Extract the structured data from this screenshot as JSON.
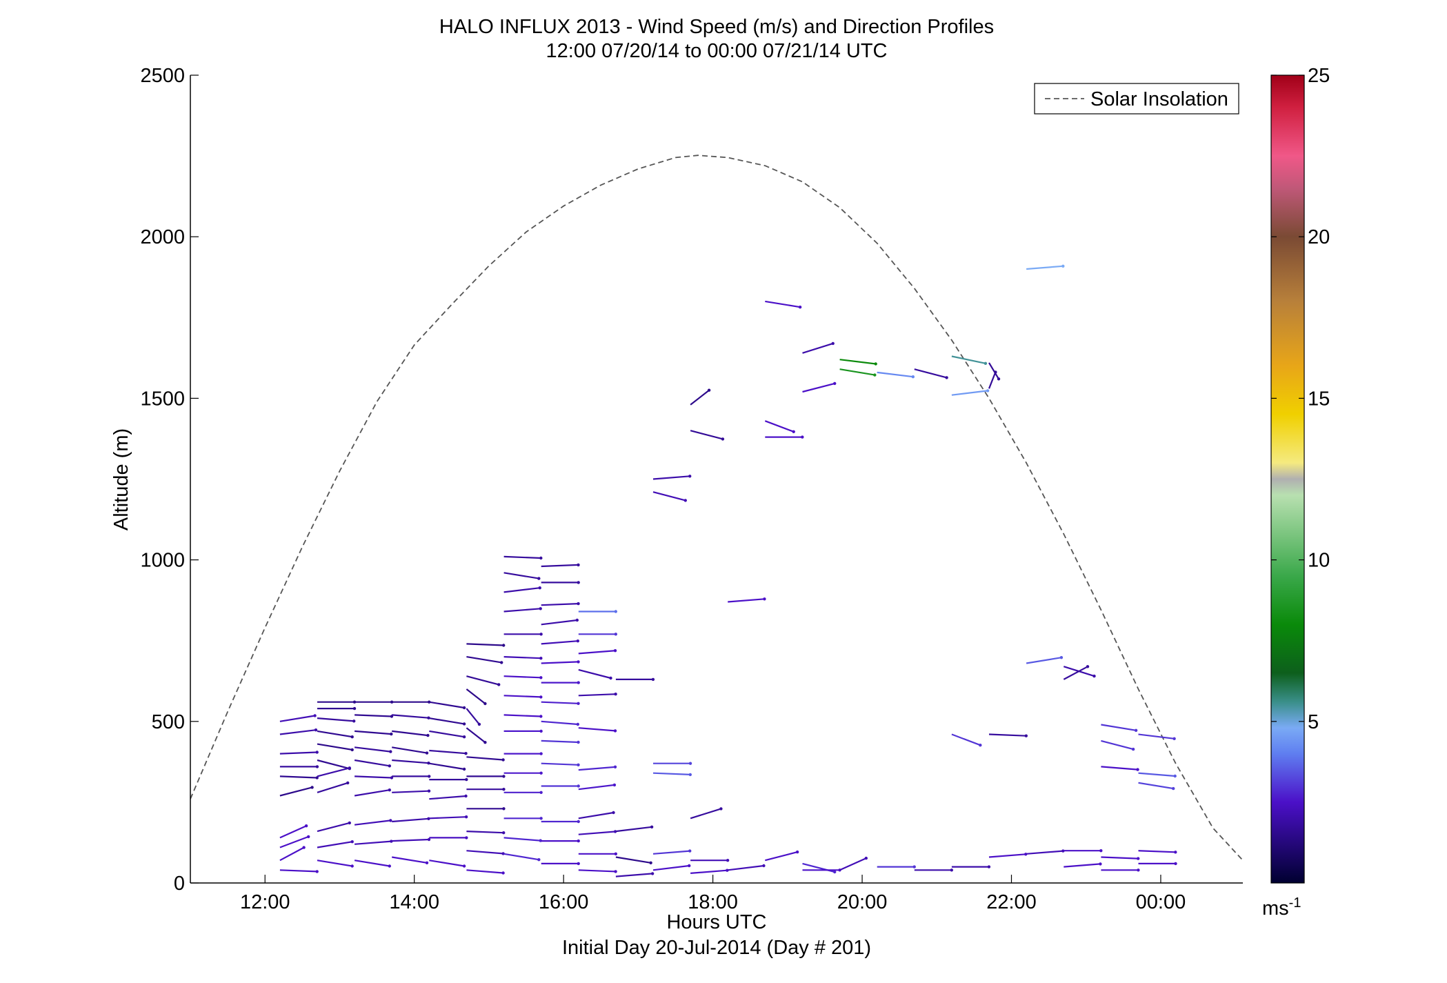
{
  "chart_data": {
    "type": "wind-barb-profile",
    "title": "HALO INFLUX 2013 - Wind Speed (m/s) and Direction Profiles",
    "subtitle": "12:00 07/20/14 to 00:00 07/21/14  UTC",
    "xlabel": "Hours UTC",
    "xlabel2": "Initial Day 20-Jul-2014 (Day # 201)",
    "ylabel": "Altitude (m)",
    "xlim_hours": [
      11.0,
      25.1
    ],
    "ylim": [
      0,
      2500
    ],
    "x_ticks": [
      {
        "value": 12,
        "label": "12:00"
      },
      {
        "value": 14,
        "label": "14:00"
      },
      {
        "value": 16,
        "label": "16:00"
      },
      {
        "value": 18,
        "label": "18:00"
      },
      {
        "value": 20,
        "label": "20:00"
      },
      {
        "value": 22,
        "label": "22:00"
      },
      {
        "value": 24,
        "label": "00:00"
      }
    ],
    "y_ticks": [
      {
        "value": 0,
        "label": "0"
      },
      {
        "value": 500,
        "label": "500"
      },
      {
        "value": 1000,
        "label": "1000"
      },
      {
        "value": 1500,
        "label": "1500"
      },
      {
        "value": 2000,
        "label": "2000"
      },
      {
        "value": 2500,
        "label": "2500"
      }
    ],
    "colorbar": {
      "range": [
        0,
        25
      ],
      "ticks": [
        {
          "value": 5,
          "label": "5"
        },
        {
          "value": 10,
          "label": "10"
        },
        {
          "value": 15,
          "label": "15"
        },
        {
          "value": 20,
          "label": "20"
        },
        {
          "value": 25,
          "label": "25"
        }
      ],
      "unit_label": "ms",
      "unit_exponent": "-1",
      "stops": [
        {
          "v": 0.0,
          "color": "#000030"
        },
        {
          "v": 2.5,
          "color": "#4b10c8"
        },
        {
          "v": 4.0,
          "color": "#5f7ef0"
        },
        {
          "v": 4.8,
          "color": "#7aaaf5"
        },
        {
          "v": 5.6,
          "color": "#3a8f8a"
        },
        {
          "v": 6.5,
          "color": "#0d5f1c"
        },
        {
          "v": 8.0,
          "color": "#0a8a0a"
        },
        {
          "v": 9.5,
          "color": "#3aa84a"
        },
        {
          "v": 12.0,
          "color": "#b8e0b0"
        },
        {
          "v": 12.5,
          "color": "#b0b0b0"
        },
        {
          "v": 13.0,
          "color": "#f5ea80"
        },
        {
          "v": 14.5,
          "color": "#f0d000"
        },
        {
          "v": 16.0,
          "color": "#e8a618"
        },
        {
          "v": 18.0,
          "color": "#b8803a"
        },
        {
          "v": 20.0,
          "color": "#7a4a34"
        },
        {
          "v": 21.5,
          "color": "#c05878"
        },
        {
          "v": 22.5,
          "color": "#f05888"
        },
        {
          "v": 24.0,
          "color": "#d02040"
        },
        {
          "v": 25.0,
          "color": "#a00018"
        }
      ]
    },
    "legend": {
      "entries": [
        "Solar Insolation"
      ],
      "placement": "top-right"
    },
    "solar_insolation": {
      "style": "dashed",
      "color": "#555555",
      "points": [
        [
          11.0,
          260
        ],
        [
          11.5,
          530
        ],
        [
          12.0,
          790
        ],
        [
          12.5,
          1040
        ],
        [
          13.0,
          1275
        ],
        [
          13.5,
          1490
        ],
        [
          14.0,
          1665
        ],
        [
          14.5,
          1790
        ],
        [
          15.0,
          1910
        ],
        [
          15.5,
          2015
        ],
        [
          16.0,
          2095
        ],
        [
          16.5,
          2160
        ],
        [
          17.0,
          2210
        ],
        [
          17.5,
          2245
        ],
        [
          17.8,
          2252
        ],
        [
          18.2,
          2245
        ],
        [
          18.7,
          2220
        ],
        [
          19.2,
          2170
        ],
        [
          19.7,
          2090
        ],
        [
          20.2,
          1980
        ],
        [
          20.7,
          1840
        ],
        [
          21.2,
          1680
        ],
        [
          21.7,
          1500
        ],
        [
          22.2,
          1300
        ],
        [
          22.7,
          1080
        ],
        [
          23.2,
          845
        ],
        [
          23.7,
          600
        ],
        [
          24.2,
          370
        ],
        [
          24.7,
          170
        ],
        [
          25.1,
          70
        ]
      ]
    },
    "wind_vectors": [
      [
        12.2,
        500,
        2.2,
        70
      ],
      [
        12.2,
        460,
        2.0,
        75
      ],
      [
        12.2,
        400,
        2.0,
        85
      ],
      [
        12.2,
        360,
        1.8,
        90
      ],
      [
        12.2,
        330,
        1.6,
        95
      ],
      [
        12.2,
        270,
        1.5,
        60
      ],
      [
        12.2,
        140,
        2.5,
        45
      ],
      [
        12.2,
        110,
        2.5,
        50
      ],
      [
        12.2,
        70,
        2.5,
        40
      ],
      [
        12.2,
        40,
        2.5,
        95
      ],
      [
        12.7,
        560,
        1.5,
        90
      ],
      [
        12.7,
        540,
        1.6,
        90
      ],
      [
        12.7,
        510,
        1.8,
        100
      ],
      [
        12.7,
        470,
        1.6,
        110
      ],
      [
        12.7,
        430,
        1.5,
        110
      ],
      [
        12.7,
        380,
        1.6,
        120
      ],
      [
        12.7,
        330,
        2.0,
        60
      ],
      [
        12.7,
        280,
        1.8,
        55
      ],
      [
        12.7,
        160,
        2.0,
        60
      ],
      [
        12.7,
        110,
        2.2,
        70
      ],
      [
        12.7,
        70,
        2.5,
        110
      ],
      [
        13.2,
        560,
        1.5,
        90
      ],
      [
        13.2,
        520,
        1.6,
        95
      ],
      [
        13.2,
        470,
        1.6,
        100
      ],
      [
        13.2,
        420,
        1.8,
        105
      ],
      [
        13.2,
        380,
        1.8,
        110
      ],
      [
        13.2,
        330,
        2.0,
        95
      ],
      [
        13.2,
        270,
        2.0,
        70
      ],
      [
        13.2,
        180,
        2.2,
        75
      ],
      [
        13.2,
        120,
        2.2,
        80
      ],
      [
        13.2,
        70,
        2.5,
        110
      ],
      [
        13.7,
        560,
        1.5,
        90
      ],
      [
        13.7,
        520,
        1.8,
        100
      ],
      [
        13.7,
        470,
        1.6,
        105
      ],
      [
        13.7,
        420,
        1.6,
        110
      ],
      [
        13.7,
        380,
        1.8,
        100
      ],
      [
        13.7,
        330,
        1.8,
        90
      ],
      [
        13.7,
        280,
        2.0,
        85
      ],
      [
        13.7,
        190,
        2.0,
        80
      ],
      [
        13.7,
        130,
        2.2,
        85
      ],
      [
        13.7,
        80,
        2.5,
        110
      ],
      [
        14.2,
        560,
        1.6,
        110
      ],
      [
        14.2,
        510,
        1.6,
        110
      ],
      [
        14.2,
        470,
        1.8,
        110
      ],
      [
        14.2,
        410,
        1.8,
        100
      ],
      [
        14.2,
        370,
        1.6,
        110
      ],
      [
        14.2,
        320,
        1.8,
        90
      ],
      [
        14.2,
        260,
        2.0,
        80
      ],
      [
        14.2,
        200,
        2.2,
        85
      ],
      [
        14.2,
        140,
        2.4,
        90
      ],
      [
        14.2,
        70,
        2.5,
        110
      ],
      [
        14.7,
        740,
        1.5,
        95
      ],
      [
        14.7,
        700,
        1.6,
        110
      ],
      [
        14.7,
        640,
        1.7,
        120
      ],
      [
        14.7,
        600,
        1.5,
        150
      ],
      [
        14.7,
        540,
        1.8,
        160
      ],
      [
        14.7,
        480,
        1.6,
        150
      ],
      [
        14.7,
        390,
        1.6,
        100
      ],
      [
        14.7,
        330,
        1.6,
        90
      ],
      [
        14.7,
        290,
        1.8,
        90
      ],
      [
        14.7,
        230,
        1.6,
        90
      ],
      [
        14.7,
        160,
        2.0,
        95
      ],
      [
        14.7,
        100,
        2.2,
        100
      ],
      [
        14.7,
        40,
        2.5,
        100
      ],
      [
        15.2,
        1010,
        1.8,
        95
      ],
      [
        15.2,
        960,
        1.8,
        110
      ],
      [
        15.2,
        900,
        2.0,
        75
      ],
      [
        15.2,
        840,
        2.0,
        80
      ],
      [
        15.2,
        770,
        2.0,
        90
      ],
      [
        15.2,
        700,
        2.2,
        95
      ],
      [
        15.2,
        640,
        2.5,
        95
      ],
      [
        15.2,
        580,
        2.5,
        95
      ],
      [
        15.2,
        520,
        2.5,
        95
      ],
      [
        15.2,
        470,
        2.6,
        90
      ],
      [
        15.2,
        400,
        2.6,
        90
      ],
      [
        15.2,
        340,
        2.6,
        90
      ],
      [
        15.2,
        280,
        2.7,
        90
      ],
      [
        15.2,
        200,
        2.8,
        90
      ],
      [
        15.2,
        140,
        2.8,
        100
      ],
      [
        15.2,
        90,
        2.8,
        110
      ],
      [
        15.7,
        980,
        1.8,
        85
      ],
      [
        15.7,
        930,
        1.8,
        90
      ],
      [
        15.7,
        860,
        2.0,
        85
      ],
      [
        15.7,
        800,
        2.0,
        75
      ],
      [
        15.7,
        740,
        2.2,
        80
      ],
      [
        15.7,
        680,
        2.5,
        85
      ],
      [
        15.7,
        620,
        2.6,
        90
      ],
      [
        15.7,
        560,
        2.7,
        95
      ],
      [
        15.7,
        500,
        2.8,
        100
      ],
      [
        15.7,
        440,
        3.0,
        95
      ],
      [
        15.7,
        370,
        3.0,
        95
      ],
      [
        15.7,
        300,
        3.0,
        90
      ],
      [
        15.7,
        190,
        2.8,
        90
      ],
      [
        15.7,
        130,
        2.5,
        90
      ],
      [
        15.7,
        60,
        2.5,
        90
      ],
      [
        16.2,
        840,
        3.8,
        90
      ],
      [
        16.2,
        770,
        3.0,
        90
      ],
      [
        16.2,
        710,
        2.5,
        80
      ],
      [
        16.2,
        660,
        2.0,
        120
      ],
      [
        16.2,
        580,
        2.0,
        85
      ],
      [
        16.2,
        480,
        2.5,
        100
      ],
      [
        16.2,
        350,
        2.8,
        80
      ],
      [
        16.2,
        290,
        2.6,
        75
      ],
      [
        16.2,
        200,
        2.0,
        70
      ],
      [
        16.2,
        150,
        2.2,
        80
      ],
      [
        16.2,
        90,
        2.5,
        90
      ],
      [
        16.2,
        40,
        2.5,
        95
      ],
      [
        16.7,
        630,
        1.8,
        90
      ],
      [
        16.7,
        160,
        1.8,
        75
      ],
      [
        16.7,
        80,
        1.5,
        110
      ],
      [
        16.7,
        20,
        2.0,
        80
      ],
      [
        17.2,
        1250,
        2.0,
        80
      ],
      [
        17.2,
        1210,
        2.2,
        120
      ],
      [
        17.2,
        370,
        3.2,
        90
      ],
      [
        17.2,
        340,
        3.5,
        95
      ],
      [
        17.2,
        90,
        3.0,
        80
      ],
      [
        17.2,
        40,
        2.5,
        75
      ],
      [
        17.7,
        1480,
        1.5,
        30
      ],
      [
        17.7,
        1400,
        1.7,
        120
      ],
      [
        17.7,
        200,
        1.8,
        55
      ],
      [
        17.7,
        70,
        2.2,
        90
      ],
      [
        17.7,
        30,
        2.5,
        80
      ],
      [
        18.2,
        870,
        2.5,
        80
      ],
      [
        18.2,
        40,
        2.2,
        75
      ],
      [
        18.7,
        1800,
        2.5,
        110
      ],
      [
        18.7,
        1430,
        2.5,
        130
      ],
      [
        18.7,
        1380,
        2.5,
        90
      ],
      [
        18.7,
        70,
        2.5,
        60
      ],
      [
        19.2,
        1640,
        2.0,
        55
      ],
      [
        19.2,
        1520,
        2.5,
        60
      ],
      [
        19.2,
        60,
        2.8,
        120
      ],
      [
        19.2,
        40,
        2.5,
        90
      ],
      [
        19.7,
        1620,
        8.0,
        105
      ],
      [
        19.7,
        1590,
        8.5,
        110
      ],
      [
        19.7,
        40,
        2.2,
        45
      ],
      [
        20.2,
        1580,
        4.2,
        105
      ],
      [
        20.2,
        50,
        3.0,
        90
      ],
      [
        20.7,
        1590,
        1.8,
        120
      ],
      [
        20.7,
        40,
        2.0,
        90
      ],
      [
        21.2,
        1630,
        5.5,
        115
      ],
      [
        21.2,
        1510,
        4.5,
        75
      ],
      [
        21.2,
        460,
        3.0,
        130
      ],
      [
        21.2,
        50,
        2.0,
        90
      ],
      [
        21.7,
        1610,
        1.7,
        165
      ],
      [
        21.7,
        1530,
        1.7,
        10
      ],
      [
        21.7,
        460,
        1.8,
        95
      ],
      [
        21.7,
        80,
        2.5,
        80
      ],
      [
        22.2,
        1900,
        4.8,
        80
      ],
      [
        22.2,
        680,
        3.5,
        70
      ],
      [
        22.2,
        90,
        2.2,
        80
      ],
      [
        22.7,
        670,
        2.0,
        125
      ],
      [
        22.7,
        630,
        1.8,
        40
      ],
      [
        22.7,
        100,
        2.5,
        90
      ],
      [
        22.7,
        50,
        2.5,
        80
      ],
      [
        23.2,
        490,
        3.0,
        110
      ],
      [
        23.2,
        440,
        3.0,
        120
      ],
      [
        23.2,
        360,
        2.5,
        100
      ],
      [
        23.2,
        80,
        2.5,
        95
      ],
      [
        23.2,
        40,
        2.5,
        90
      ],
      [
        23.7,
        460,
        3.0,
        105
      ],
      [
        23.7,
        340,
        3.5,
        100
      ],
      [
        23.7,
        310,
        3.2,
        110
      ],
      [
        23.7,
        100,
        2.5,
        95
      ],
      [
        23.7,
        60,
        2.5,
        90
      ]
    ]
  }
}
